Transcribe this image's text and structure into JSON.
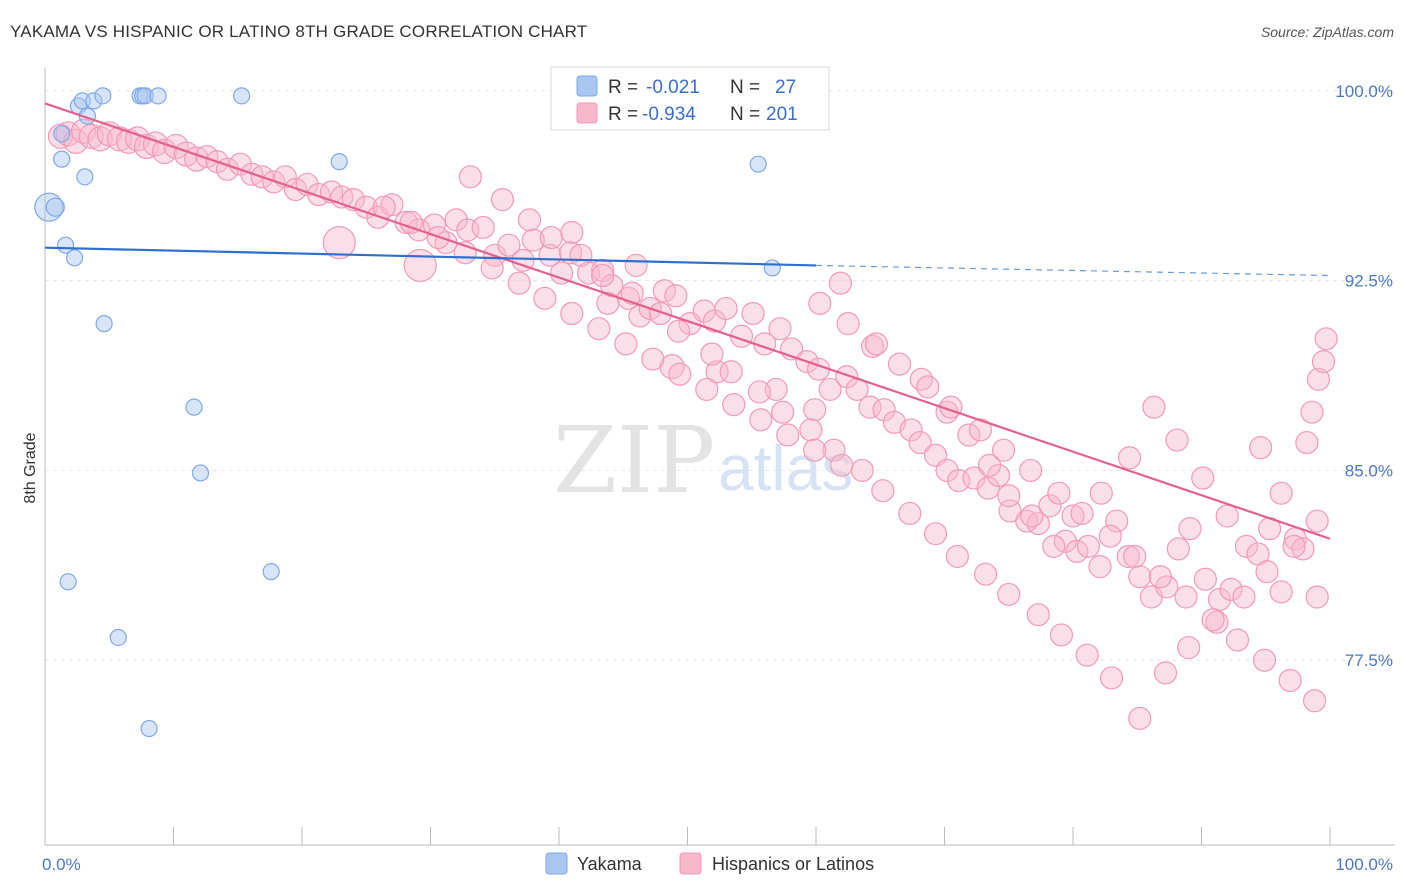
{
  "header": {
    "title": "YAKAMA VS HISPANIC OR LATINO 8TH GRADE CORRELATION CHART",
    "source": "Source: ZipAtlas.com"
  },
  "watermark": {
    "zip": "ZIP",
    "atlas": "atlas"
  },
  "legend_top": {
    "rows": [
      {
        "r_label": "R =",
        "r_value": "-0.021",
        "n_label": "N =",
        "n_value": "27",
        "color": "#a9c6f0"
      },
      {
        "r_label": "R =",
        "r_value": "-0.934",
        "n_label": "N =",
        "n_value": "201",
        "color": "#f7b8cc"
      }
    ]
  },
  "chart_data": {
    "type": "scatter",
    "title": "YAKAMA VS HISPANIC OR LATINO 8TH GRADE CORRELATION CHART",
    "ylabel": "8th Grade",
    "xlabel": "",
    "xlim": [
      0,
      100
    ],
    "ylim": [
      70.2,
      100.9
    ],
    "x_tick_labels": [
      "0.0%",
      "100.0%"
    ],
    "y_ticks": [
      {
        "value": 100.0,
        "label": "100.0%"
      },
      {
        "value": 92.5,
        "label": "92.5%"
      },
      {
        "value": 85.0,
        "label": "85.0%"
      },
      {
        "value": 77.5,
        "label": "77.5%"
      }
    ],
    "grid": true,
    "legend_placement": "top-center",
    "colors": {
      "yakama": "#7fa8e8",
      "hispanic": "#f29ab6",
      "yakama_line": "#2f6fd0",
      "hispanic_line": "#e4608e"
    },
    "series": [
      {
        "name": "Yakama",
        "trend": {
          "x0": 0,
          "y0": 93.8,
          "x1": 60,
          "y1": 93.1,
          "dash_to_x": 100,
          "dash_to_y": 92.7
        },
        "points": [
          [
            0.3,
            95.4,
            14
          ],
          [
            0.8,
            95.4,
            9
          ],
          [
            1.3,
            97.3,
            8
          ],
          [
            1.3,
            98.3,
            8
          ],
          [
            1.6,
            93.9,
            8
          ],
          [
            2.3,
            93.4,
            8
          ],
          [
            1.8,
            80.6,
            8
          ],
          [
            2.6,
            99.4,
            8
          ],
          [
            2.9,
            99.6,
            8
          ],
          [
            3.1,
            96.6,
            8
          ],
          [
            3.3,
            99.0,
            8
          ],
          [
            3.8,
            99.6,
            8
          ],
          [
            4.5,
            99.8,
            8
          ],
          [
            4.6,
            90.8,
            8
          ],
          [
            5.7,
            78.4,
            8
          ],
          [
            7.4,
            99.8,
            8
          ],
          [
            7.6,
            99.8,
            8
          ],
          [
            7.8,
            99.8,
            8
          ],
          [
            8.1,
            74.8,
            8
          ],
          [
            8.8,
            99.8,
            8
          ],
          [
            11.6,
            87.5,
            8
          ],
          [
            12.1,
            84.9,
            8
          ],
          [
            15.3,
            99.8,
            8
          ],
          [
            17.6,
            81.0,
            8
          ],
          [
            22.9,
            97.2,
            8
          ],
          [
            55.5,
            97.1,
            8
          ],
          [
            56.6,
            93.0,
            8
          ]
        ]
      },
      {
        "name": "Hispanics or Latinos",
        "trend": {
          "x0": 0,
          "y0": 99.5,
          "x1": 100,
          "y1": 82.3
        },
        "points": [
          [
            1.2,
            98.2,
            12
          ],
          [
            1.8,
            98.3,
            12
          ],
          [
            2.4,
            98.0,
            12
          ],
          [
            3.0,
            98.4,
            12
          ],
          [
            3.6,
            98.2,
            12
          ],
          [
            4.3,
            98.1,
            12
          ],
          [
            5.0,
            98.3,
            12
          ],
          [
            5.8,
            98.1,
            12
          ],
          [
            6.5,
            98.0,
            12
          ],
          [
            7.2,
            98.1,
            12
          ],
          [
            7.9,
            97.8,
            12
          ],
          [
            8.6,
            97.9,
            12
          ],
          [
            9.3,
            97.6,
            12
          ],
          [
            10.2,
            97.8,
            12
          ],
          [
            11.0,
            97.5,
            12
          ],
          [
            11.8,
            97.3,
            12
          ],
          [
            12.6,
            97.4,
            11
          ],
          [
            13.4,
            97.2,
            11
          ],
          [
            14.2,
            96.9,
            11
          ],
          [
            15.2,
            97.1,
            11
          ],
          [
            16.1,
            96.7,
            11
          ],
          [
            16.9,
            96.6,
            11
          ],
          [
            17.8,
            96.4,
            11
          ],
          [
            18.7,
            96.6,
            11
          ],
          [
            19.5,
            96.1,
            11
          ],
          [
            20.4,
            96.3,
            11
          ],
          [
            21.3,
            95.9,
            11
          ],
          [
            22.3,
            96.0,
            11
          ],
          [
            23.1,
            95.8,
            11
          ],
          [
            24.0,
            95.7,
            11
          ],
          [
            25.0,
            95.4,
            11
          ],
          [
            25.9,
            95.0,
            11
          ],
          [
            27.0,
            95.5,
            11
          ],
          [
            28.1,
            94.8,
            11
          ],
          [
            29.1,
            94.5,
            11
          ],
          [
            30.3,
            94.7,
            11
          ],
          [
            31.2,
            94.0,
            11
          ],
          [
            32.0,
            94.9,
            11
          ],
          [
            32.9,
            94.5,
            11
          ],
          [
            34.1,
            94.6,
            11
          ],
          [
            35.0,
            93.5,
            11
          ],
          [
            36.1,
            93.9,
            11
          ],
          [
            37.2,
            93.3,
            11
          ],
          [
            38.0,
            94.1,
            11
          ],
          [
            39.3,
            93.5,
            11
          ],
          [
            40.2,
            92.8,
            11
          ],
          [
            41.0,
            94.4,
            11
          ],
          [
            42.3,
            92.8,
            11
          ],
          [
            43.4,
            92.9,
            11
          ],
          [
            44.1,
            92.3,
            11
          ],
          [
            45.4,
            91.8,
            11
          ],
          [
            46.3,
            91.1,
            11
          ],
          [
            47.1,
            91.4,
            11
          ],
          [
            48.2,
            92.1,
            11
          ],
          [
            49.1,
            91.9,
            11
          ],
          [
            50.2,
            90.8,
            11
          ],
          [
            51.3,
            91.3,
            11
          ],
          [
            52.1,
            90.9,
            11
          ],
          [
            53.0,
            91.4,
            11
          ],
          [
            54.2,
            90.3,
            11
          ],
          [
            55.1,
            91.2,
            11
          ],
          [
            56.0,
            90.0,
            11
          ],
          [
            57.2,
            90.6,
            11
          ],
          [
            58.1,
            89.8,
            11
          ],
          [
            59.3,
            89.3,
            11
          ],
          [
            60.2,
            89.0,
            11
          ],
          [
            61.1,
            88.2,
            11
          ],
          [
            62.4,
            88.7,
            11
          ],
          [
            63.2,
            88.2,
            11
          ],
          [
            64.2,
            87.5,
            11
          ],
          [
            65.3,
            87.4,
            11
          ],
          [
            66.1,
            86.9,
            11
          ],
          [
            67.4,
            86.6,
            11
          ],
          [
            68.1,
            86.1,
            11
          ],
          [
            69.3,
            85.6,
            11
          ],
          [
            70.2,
            85.0,
            11
          ],
          [
            71.1,
            84.6,
            11
          ],
          [
            72.3,
            84.7,
            11
          ],
          [
            73.4,
            84.3,
            11
          ],
          [
            74.2,
            84.8,
            11
          ],
          [
            75.1,
            83.4,
            11
          ],
          [
            76.4,
            83.0,
            11
          ],
          [
            77.3,
            82.9,
            11
          ],
          [
            78.2,
            83.6,
            11
          ],
          [
            79.4,
            82.2,
            11
          ],
          [
            80.3,
            81.8,
            11
          ],
          [
            81.2,
            82.0,
            11
          ],
          [
            82.1,
            81.2,
            11
          ],
          [
            83.4,
            83.0,
            11
          ],
          [
            84.3,
            81.6,
            11
          ],
          [
            85.2,
            80.8,
            11
          ],
          [
            86.1,
            80.0,
            11
          ],
          [
            87.3,
            80.4,
            11
          ],
          [
            88.2,
            81.9,
            11
          ],
          [
            89.1,
            82.7,
            11
          ],
          [
            90.3,
            80.7,
            11
          ],
          [
            91.4,
            79.9,
            11
          ],
          [
            92.3,
            80.3,
            11
          ],
          [
            93.5,
            82.0,
            11
          ],
          [
            94.4,
            81.7,
            11
          ],
          [
            95.3,
            82.7,
            11
          ],
          [
            96.2,
            80.2,
            11
          ],
          [
            97.3,
            82.3,
            11
          ],
          [
            98.2,
            86.1,
            11
          ],
          [
            98.6,
            87.3,
            11
          ],
          [
            99.1,
            88.6,
            11
          ],
          [
            99.5,
            89.3,
            11
          ],
          [
            99.7,
            90.2,
            11
          ],
          [
            22.9,
            94.0,
            16
          ],
          [
            29.2,
            93.1,
            16
          ],
          [
            48.8,
            89.1,
            12
          ],
          [
            40.9,
            93.6,
            11
          ],
          [
            43.8,
            91.6,
            11
          ],
          [
            46.0,
            93.1,
            11
          ],
          [
            52.3,
            88.9,
            11
          ],
          [
            56.9,
            88.2,
            11
          ],
          [
            59.9,
            87.4,
            11
          ],
          [
            61.9,
            92.4,
            11
          ],
          [
            64.4,
            89.9,
            11
          ],
          [
            68.2,
            88.6,
            11
          ],
          [
            70.2,
            87.3,
            11
          ],
          [
            71.9,
            86.4,
            11
          ],
          [
            73.5,
            85.2,
            11
          ],
          [
            75.0,
            84.0,
            11
          ],
          [
            76.8,
            83.2,
            11
          ],
          [
            78.5,
            82.0,
            11
          ],
          [
            80.0,
            83.2,
            11
          ],
          [
            82.2,
            84.1,
            11
          ],
          [
            84.4,
            85.5,
            11
          ],
          [
            86.3,
            87.5,
            11
          ],
          [
            88.1,
            86.2,
            11
          ],
          [
            90.1,
            84.7,
            11
          ],
          [
            92.0,
            83.2,
            11
          ],
          [
            94.6,
            85.9,
            11
          ],
          [
            96.2,
            84.1,
            11
          ],
          [
            97.9,
            81.9,
            11
          ],
          [
            99.0,
            80.0,
            11
          ],
          [
            33.1,
            96.6,
            11
          ],
          [
            35.6,
            95.7,
            11
          ],
          [
            37.7,
            94.9,
            11
          ],
          [
            39.4,
            94.2,
            11
          ],
          [
            41.7,
            93.5,
            11
          ],
          [
            43.4,
            92.7,
            11
          ],
          [
            45.7,
            92.0,
            11
          ],
          [
            47.9,
            91.2,
            11
          ],
          [
            49.3,
            90.5,
            11
          ],
          [
            51.9,
            89.6,
            11
          ],
          [
            53.4,
            88.9,
            11
          ],
          [
            55.6,
            88.1,
            11
          ],
          [
            57.4,
            87.3,
            11
          ],
          [
            59.6,
            86.6,
            11
          ],
          [
            61.4,
            85.8,
            11
          ],
          [
            63.6,
            85.0,
            11
          ],
          [
            65.2,
            84.2,
            11
          ],
          [
            67.3,
            83.3,
            11
          ],
          [
            69.3,
            82.5,
            11
          ],
          [
            71.0,
            81.6,
            11
          ],
          [
            73.2,
            80.9,
            11
          ],
          [
            75.0,
            80.1,
            11
          ],
          [
            77.3,
            79.3,
            11
          ],
          [
            79.1,
            78.5,
            11
          ],
          [
            81.1,
            77.7,
            11
          ],
          [
            83.0,
            76.8,
            11
          ],
          [
            85.2,
            75.2,
            11
          ],
          [
            87.2,
            77.0,
            11
          ],
          [
            89.0,
            78.0,
            11
          ],
          [
            91.2,
            79.0,
            11
          ],
          [
            93.3,
            80.0,
            11
          ],
          [
            95.1,
            81.0,
            11
          ],
          [
            97.2,
            82.0,
            11
          ],
          [
            99.0,
            83.0,
            11
          ],
          [
            60.3,
            91.6,
            11
          ],
          [
            62.5,
            90.8,
            11
          ],
          [
            64.7,
            90.0,
            11
          ],
          [
            66.5,
            89.2,
            11
          ],
          [
            68.7,
            88.3,
            11
          ],
          [
            70.5,
            87.5,
            11
          ],
          [
            72.8,
            86.6,
            11
          ],
          [
            74.6,
            85.8,
            11
          ],
          [
            76.7,
            85.0,
            11
          ],
          [
            78.9,
            84.1,
            11
          ],
          [
            80.7,
            83.3,
            11
          ],
          [
            82.9,
            82.4,
            11
          ],
          [
            84.8,
            81.6,
            11
          ],
          [
            86.8,
            80.8,
            11
          ],
          [
            88.8,
            80.0,
            11
          ],
          [
            90.9,
            79.1,
            11
          ],
          [
            92.8,
            78.3,
            11
          ],
          [
            94.9,
            77.5,
            11
          ],
          [
            96.9,
            76.7,
            11
          ],
          [
            98.8,
            75.9,
            11
          ],
          [
            26.4,
            95.4,
            11
          ],
          [
            28.5,
            94.8,
            11
          ],
          [
            30.6,
            94.2,
            11
          ],
          [
            32.7,
            93.6,
            11
          ],
          [
            34.8,
            93.0,
            11
          ],
          [
            36.9,
            92.4,
            11
          ],
          [
            38.9,
            91.8,
            11
          ],
          [
            41.0,
            91.2,
            11
          ],
          [
            43.1,
            90.6,
            11
          ],
          [
            45.2,
            90.0,
            11
          ],
          [
            47.3,
            89.4,
            11
          ],
          [
            49.4,
            88.8,
            11
          ],
          [
            51.5,
            88.2,
            11
          ],
          [
            53.6,
            87.6,
            11
          ],
          [
            55.7,
            87.0,
            11
          ],
          [
            57.8,
            86.4,
            11
          ],
          [
            59.9,
            85.8,
            11
          ],
          [
            62.0,
            85.2,
            11
          ]
        ]
      }
    ]
  },
  "bottom_legend": [
    {
      "label": "Yakama",
      "color": "#a9c6f0"
    },
    {
      "label": "Hispanics or Latinos",
      "color": "#f7b8cc"
    }
  ]
}
